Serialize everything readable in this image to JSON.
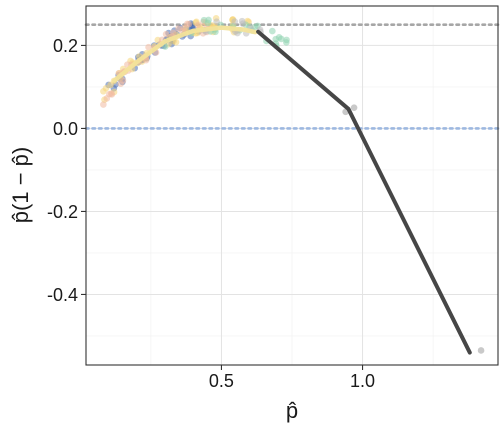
{
  "chart_data": {
    "type": "scatter",
    "xlabel": "p̂",
    "ylabel": "p̂(1 − p̂)",
    "xlim": [
      0.02,
      1.48
    ],
    "ylim": [
      -0.57,
      0.295
    ],
    "x_ticks": [
      0.5,
      1.0
    ],
    "x_tick_labels": [
      "0.5",
      "1.0"
    ],
    "y_ticks": [
      0.2,
      0.0,
      -0.2,
      -0.4
    ],
    "y_tick_labels": [
      "0.2",
      "0.0",
      "-0.2",
      "-0.4"
    ],
    "grid": true,
    "reference_lines": [
      {
        "y": 0.25,
        "style": "dotted",
        "color": "#a6a6a6"
      },
      {
        "y": 0.0,
        "style": "dotted",
        "color": "#9db8e0"
      }
    ],
    "line_series": {
      "color": "#464646",
      "points": [
        [
          0.63,
          0.233
        ],
        [
          0.95,
          0.047
        ],
        [
          1.38,
          -0.54
        ]
      ]
    },
    "smooth_curve": {
      "color": "#f3e39a",
      "points": [
        [
          0.12,
          0.115
        ],
        [
          0.2,
          0.16
        ],
        [
          0.3,
          0.21
        ],
        [
          0.4,
          0.235
        ],
        [
          0.5,
          0.243
        ],
        [
          0.58,
          0.238
        ],
        [
          0.62,
          0.232
        ]
      ]
    },
    "point_clusters": [
      {
        "color": "#4a6fb5",
        "x_range": [
          0.1,
          0.42
        ],
        "count": 45
      },
      {
        "color": "#f5d67a",
        "x_range": [
          0.08,
          0.6
        ],
        "count": 55
      },
      {
        "color": "#f0b9a0",
        "x_range": [
          0.08,
          0.45
        ],
        "count": 35
      },
      {
        "color": "#8fd3b0",
        "x_range": [
          0.3,
          0.75
        ],
        "count": 25
      },
      {
        "color": "#bcbcbc",
        "x_range": [
          0.4,
          0.65
        ],
        "count": 12
      }
    ],
    "outlier_points": [
      {
        "x": 0.94,
        "y": 0.04,
        "color": "#bcbcbc"
      },
      {
        "x": 0.97,
        "y": 0.05,
        "color": "#bcbcbc"
      },
      {
        "x": 1.42,
        "y": -0.535,
        "color": "#bcbcbc"
      }
    ]
  }
}
